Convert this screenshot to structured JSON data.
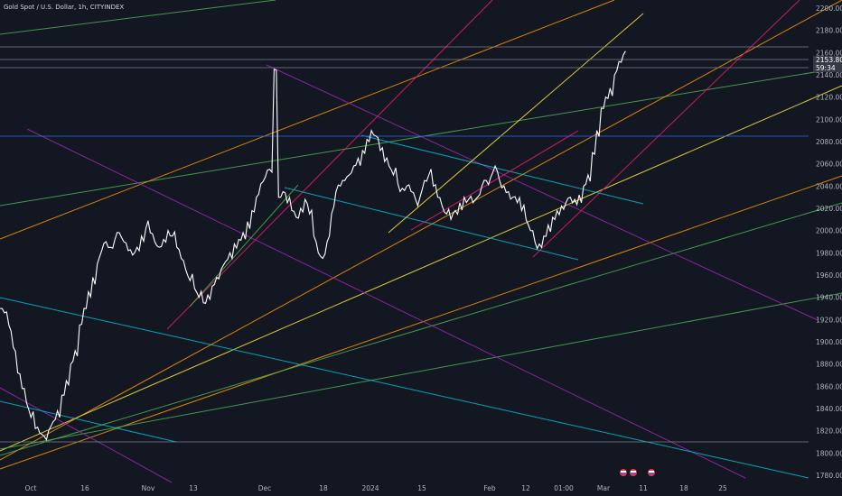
{
  "chart_data": {
    "type": "line",
    "title": "Gold Spot / U.S. Dollar, 1h, CITYINDEX",
    "y_ticks": [
      1780,
      1800,
      1820,
      1840,
      1860,
      1880,
      1900,
      1920,
      1940,
      1960,
      1980,
      2000,
      2020,
      2040,
      2060,
      2080,
      2100,
      2120,
      2140,
      2160,
      2180,
      2200
    ],
    "y_tick_labels": [
      "1780.00",
      "1800.00",
      "1820.00",
      "1840.00",
      "1860.00",
      "1880.00",
      "1900.00",
      "1920.00",
      "1940.00",
      "1960.00",
      "1980.00",
      "2000.00",
      "2020.00",
      "2040.00",
      "2060.00",
      "2080.00",
      "2100.00",
      "2120.00",
      "2140.00",
      "2160.00",
      "2180.00",
      "2200.00"
    ],
    "ylim": [
      1772,
      2208
    ],
    "x_ticks": [
      "Oct",
      "16",
      "Nov",
      "13",
      "Dec",
      "18",
      "2024",
      "15",
      "Feb",
      "12",
      "01:00",
      "Mar",
      "11",
      "18",
      "25"
    ],
    "last_price": "2153.80",
    "countdown": "59:34",
    "series": [
      {
        "values": [
          1930,
          1926,
          1915,
          1895,
          1872,
          1858,
          1845,
          1832,
          1822,
          1818,
          1815,
          1820,
          1828,
          1838,
          1852,
          1865,
          1880,
          1892,
          1915,
          1930,
          1945,
          1958,
          1970,
          1982,
          1990,
          1985,
          1992,
          1998,
          1990,
          1982,
          1978,
          1985,
          1995,
          2002,
          1998,
          1990,
          1985,
          1992,
          2000,
          1995,
          1985,
          1975,
          1965,
          1955,
          1948,
          1940,
          1935,
          1942,
          1950,
          1958,
          1965,
          1972,
          1980,
          1988,
          1992,
          1998,
          2008,
          2018,
          2030,
          2042,
          2048,
          2055,
          2145,
          2030,
          2035,
          2025,
          2018,
          2012,
          2020,
          2028,
          2015,
          1995,
          1980,
          1975,
          1990,
          2015,
          2035,
          2040,
          2045,
          2050,
          2058,
          2065,
          2072,
          2082,
          2090,
          2085,
          2072,
          2062,
          2058,
          2050,
          2042,
          2038,
          2040,
          2035,
          2028,
          2030,
          2045,
          2050,
          2040,
          2030,
          2022,
          2015,
          2010,
          2018,
          2025,
          2030,
          2028,
          2025,
          2030,
          2040,
          2045,
          2048,
          2058,
          2045,
          2040,
          2035,
          2030,
          2025,
          2018,
          2010,
          2000,
          1990,
          1988,
          1995,
          2005,
          2012,
          2018,
          2022,
          2025,
          2030,
          2028,
          2032,
          2040,
          2050,
          2070,
          2090,
          2110,
          2120,
          2128,
          2140,
          2152,
          2158
        ]
      }
    ],
    "colors": {
      "background": "#131722",
      "price": "#ffffff",
      "axis_text": "#b2b5be",
      "price_tag": "#363a45"
    }
  }
}
